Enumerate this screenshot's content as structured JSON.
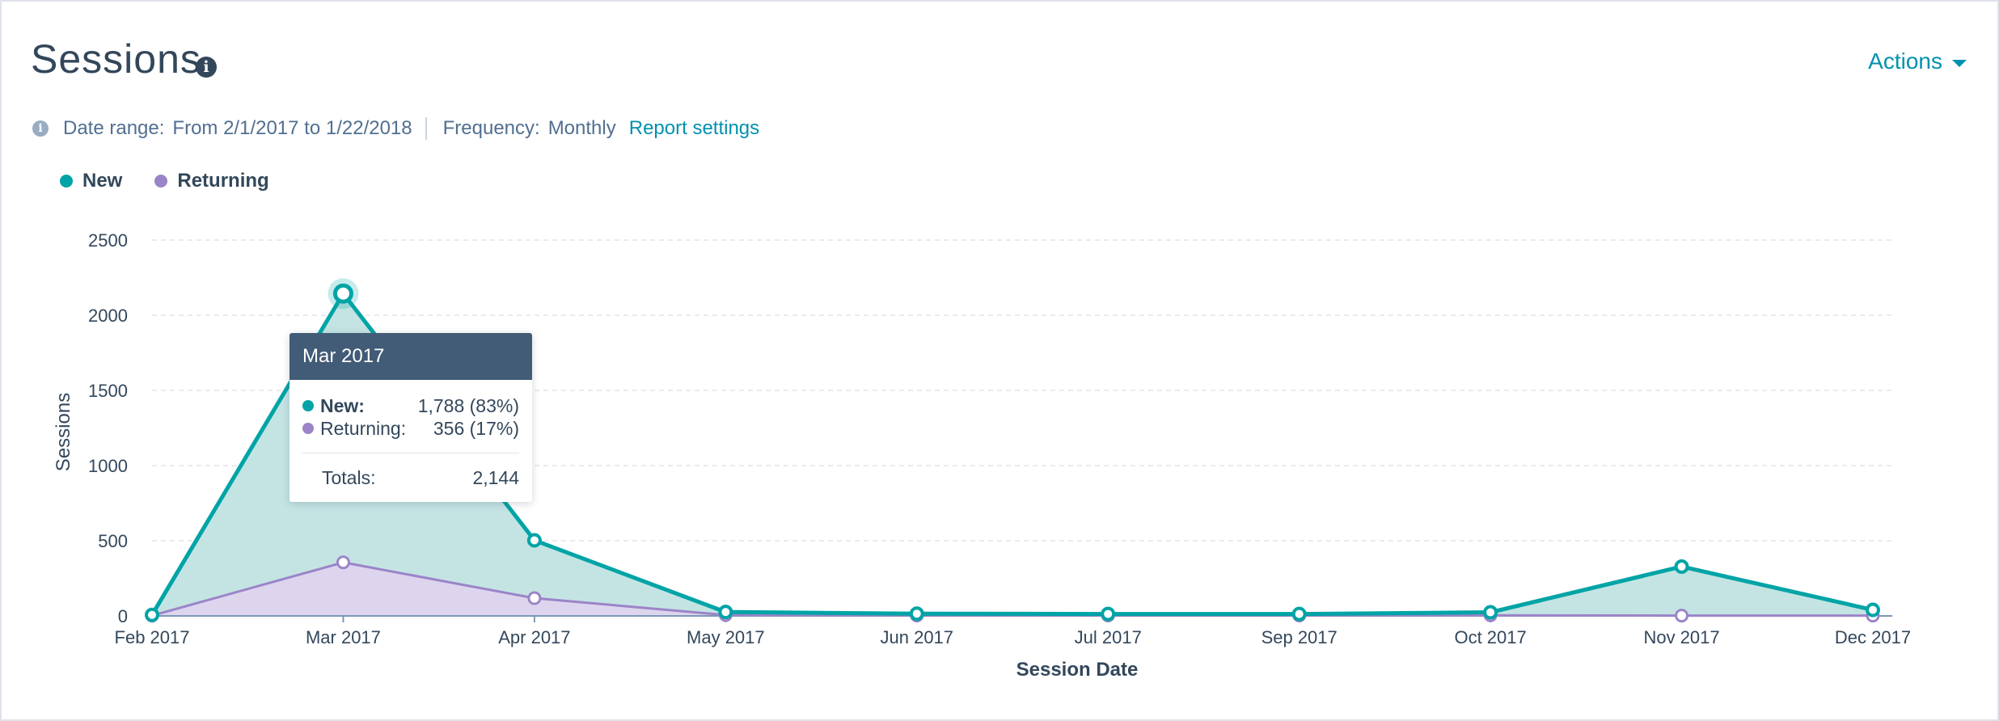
{
  "header": {
    "title": "Sessions",
    "title_info_icon": "info-icon",
    "actions_label": "Actions"
  },
  "meta": {
    "info_icon": "info-icon",
    "date_range_label": "Date range:",
    "date_range_value": "From 2/1/2017 to 1/22/2018",
    "frequency_label": "Frequency:",
    "frequency_value": "Monthly",
    "report_settings_label": "Report settings"
  },
  "legend": [
    {
      "label": "New",
      "color": "#00a4a6"
    },
    {
      "label": "Returning",
      "color": "#9b84c8"
    }
  ],
  "tooltip": {
    "title": "Mar 2017",
    "rows": [
      {
        "label": "New:",
        "value": "1,788 (83%)"
      },
      {
        "label": "Returning:",
        "value": "356 (17%)"
      }
    ],
    "total_label": "Totals:",
    "total_value": "2,144"
  },
  "chart_data": {
    "type": "area",
    "title": "",
    "xlabel": "Session Date",
    "ylabel": "Sessions",
    "ylim": [
      0,
      2500
    ],
    "yticks": [
      0,
      500,
      1000,
      1500,
      2000,
      2500
    ],
    "grid": true,
    "stacked": true,
    "legend_position": "top-left",
    "categories": [
      "Feb 2017",
      "Mar 2017",
      "Apr 2017",
      "May 2017",
      "Jun 2017",
      "Jul 2017",
      "Sep 2017",
      "Oct 2017",
      "Nov 2017",
      "Dec 2017"
    ],
    "series": [
      {
        "name": "New",
        "color": "#00a4a6",
        "fill": "#c4e4e4",
        "values": [
          5,
          1788,
          385,
          20,
          12,
          10,
          10,
          20,
          326,
          38
        ]
      },
      {
        "name": "Returning",
        "color": "#9b84c8",
        "fill": "#ddd5ee",
        "values": [
          2,
          356,
          118,
          6,
          3,
          3,
          3,
          4,
          2,
          2
        ]
      }
    ],
    "highlighted_category": "Mar 2017"
  }
}
